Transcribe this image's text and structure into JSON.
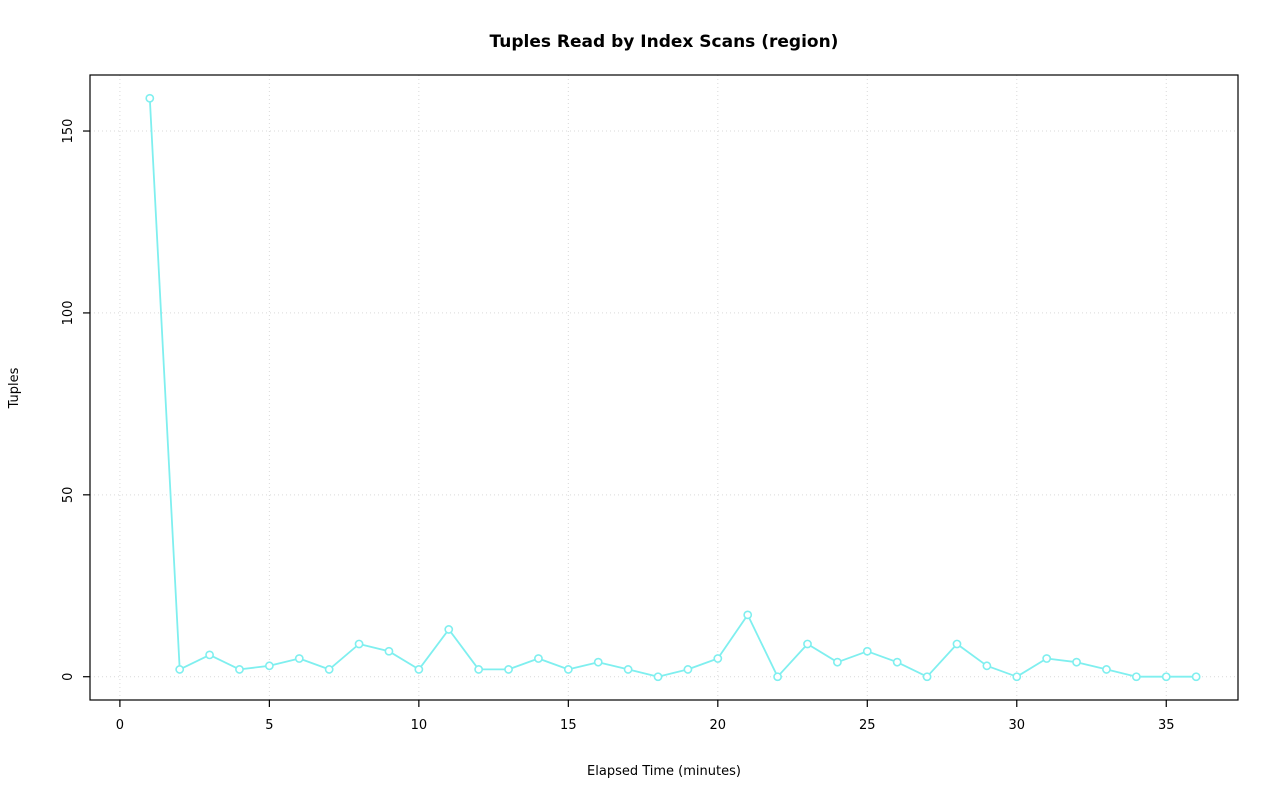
{
  "chart_data": {
    "type": "line",
    "title": "Tuples Read by Index Scans (region)",
    "xlabel": "Elapsed Time (minutes)",
    "ylabel": "Tuples",
    "x": [
      1,
      2,
      3,
      4,
      5,
      6,
      7,
      8,
      9,
      10,
      11,
      12,
      13,
      14,
      15,
      16,
      17,
      18,
      19,
      20,
      21,
      22,
      23,
      24,
      25,
      26,
      27,
      28,
      29,
      30,
      31,
      32,
      33,
      34,
      35,
      36
    ],
    "values": [
      159,
      2,
      6,
      2,
      3,
      5,
      2,
      9,
      7,
      2,
      13,
      2,
      2,
      5,
      2,
      4,
      2,
      0,
      2,
      5,
      17,
      0,
      9,
      4,
      7,
      4,
      0,
      9,
      3,
      0,
      5,
      4,
      2,
      0,
      0,
      0
    ],
    "xticks": [
      0,
      5,
      10,
      15,
      20,
      25,
      30,
      35
    ],
    "yticks": [
      0,
      50,
      100,
      150
    ],
    "xlim": [
      -1.0,
      37.4
    ],
    "ylim": [
      -6.4,
      165.4
    ],
    "grid": "dotted, on both axes at tick positions",
    "legend": "none",
    "marker": "open-circle",
    "colors": {
      "line": "#7FEFEF",
      "marker_fill": "#ffffff",
      "grid": "#D9D9D9",
      "axis": "#000000",
      "background": "#ffffff"
    }
  }
}
